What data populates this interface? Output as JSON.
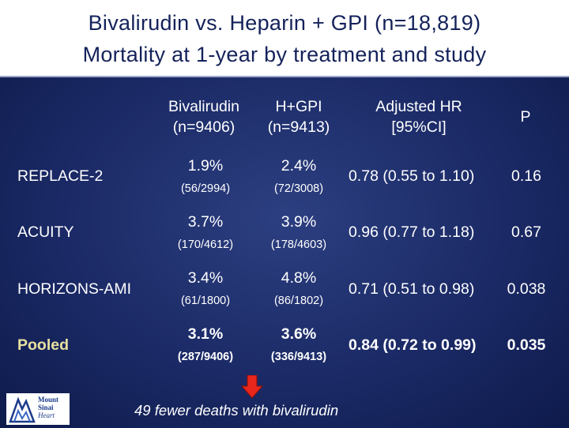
{
  "title": {
    "line1": "Bivalirudin vs. Heparin + GPI (n=18,819)",
    "line2": "Mortality at 1-year by treatment and study"
  },
  "table": {
    "headers": {
      "bival": "Bivalirudin",
      "bival_n": "(n=9406)",
      "hgpi": "H+GPI",
      "hgpi_n": "(n=9413)",
      "hr": "Adjusted HR",
      "hr_ci": "[95%CI]",
      "p": "P"
    },
    "rows": [
      {
        "label": "REPLACE-2",
        "bival_pct": "1.9%",
        "bival_count": "(56/2994)",
        "hgpi_pct": "2.4%",
        "hgpi_count": "(72/3008)",
        "hr": "0.78 (0.55 to 1.10)",
        "p": "0.16"
      },
      {
        "label": "ACUITY",
        "bival_pct": "3.7%",
        "bival_count": "(170/4612)",
        "hgpi_pct": "3.9%",
        "hgpi_count": "(178/4603)",
        "hr": "0.96 (0.77 to 1.18)",
        "p": "0.67"
      },
      {
        "label": "HORIZONS-AMI",
        "bival_pct": "3.4%",
        "bival_count": "(61/1800)",
        "hgpi_pct": "4.8%",
        "hgpi_count": "(86/1802)",
        "hr": "0.71 (0.51 to 0.98)",
        "p": "0.038"
      },
      {
        "label": "Pooled",
        "bival_pct": "3.1%",
        "bival_count": "(287/9406)",
        "hgpi_pct": "3.6%",
        "hgpi_count": "(336/9413)",
        "hr": "0.84 (0.72 to 0.99)",
        "p": "0.035"
      }
    ]
  },
  "footer": "49 fewer deaths with bivalirudin",
  "logo": {
    "line1": "Mount",
    "line2": "Sinai",
    "line3": "Heart"
  },
  "colors": {
    "panel": "#1b2a66",
    "title": "#14225a",
    "arrow": "#e8261c",
    "pooled_label": "#e8e0a0"
  },
  "icons": {
    "arrow": "down-arrow-icon",
    "logo": "mount-sinai-logo-icon"
  }
}
